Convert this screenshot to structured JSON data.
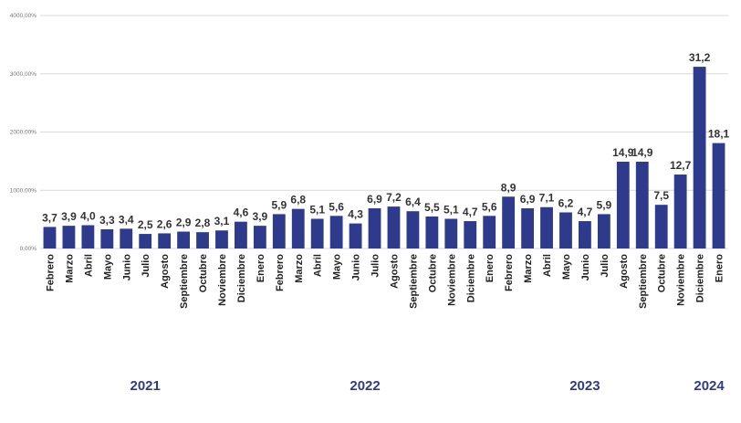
{
  "chart_data": {
    "type": "bar",
    "bar_color": "#2e3a8c",
    "grid_color": "#d9d9d9",
    "year_label_color": "#2e3a8c",
    "ylim": [
      0,
      4000
    ],
    "y_ticks": [
      "0,00%",
      "1000,00%",
      "2000,00%",
      "3000,00%",
      "4000,00%"
    ],
    "y_tick_values": [
      0,
      1000,
      2000,
      3000,
      4000
    ],
    "categories": [
      "Febrero",
      "Marzo",
      "Abril",
      "Mayo",
      "Junio",
      "Julio",
      "Agosto",
      "Septiembre",
      "Octubre",
      "Noviembre",
      "Diciembre",
      "Enero",
      "Febrero",
      "Marzo",
      "Abril",
      "Mayo",
      "Junio",
      "Julio",
      "Agosto",
      "Septiembre",
      "Octubre",
      "Noviembre",
      "Diciembre",
      "Enero",
      "Febrero",
      "Marzo",
      "Abril",
      "Mayo",
      "Junio",
      "Julio",
      "Agosto",
      "Septiembre",
      "Octubre",
      "Noviembre",
      "Diciembre",
      "Enero"
    ],
    "values": [
      370,
      390,
      400,
      330,
      340,
      250,
      260,
      290,
      280,
      310,
      460,
      390,
      590,
      680,
      510,
      560,
      430,
      690,
      720,
      640,
      550,
      510,
      470,
      560,
      890,
      690,
      710,
      620,
      470,
      590,
      1490,
      1490,
      750,
      1270,
      3120,
      1810
    ],
    "data_labels": [
      "3,7",
      "3,9",
      "4,0",
      "3,3",
      "3,4",
      "2,5",
      "2,6",
      "2,9",
      "2,8",
      "3,1",
      "4,6",
      "3,9",
      "5,9",
      "6,8",
      "5,1",
      "5,6",
      "4,3",
      "6,9",
      "7,2",
      "6,4",
      "5,5",
      "5,1",
      "4,7",
      "5,6",
      "8,9",
      "6,9",
      "7,1",
      "6,2",
      "4,7",
      "5,9",
      "14,9",
      "14,9",
      "7,5",
      "12,7",
      "31,2",
      "18,1"
    ],
    "years": [
      {
        "label": "2021",
        "start": 0,
        "end": 10
      },
      {
        "label": "2022",
        "start": 11,
        "end": 22
      },
      {
        "label": "2023",
        "start": 23,
        "end": 33
      },
      {
        "label": "2024",
        "start": 34,
        "end": 35
      }
    ],
    "grid": true
  }
}
